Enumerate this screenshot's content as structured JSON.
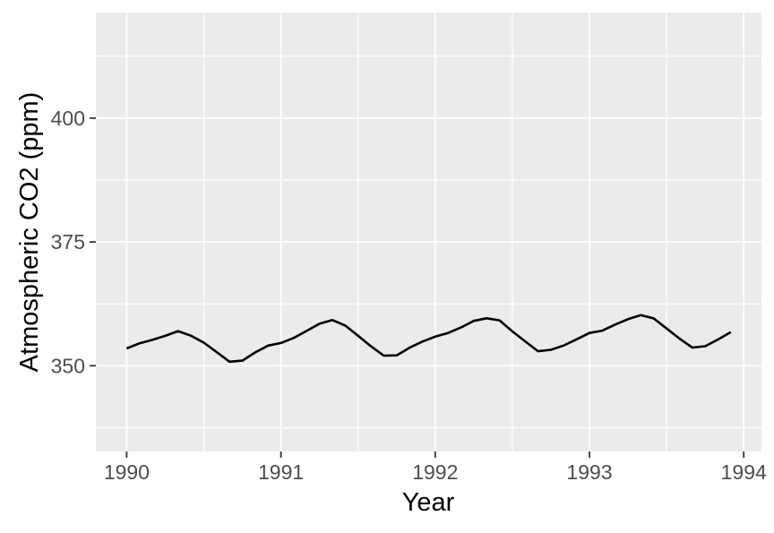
{
  "figure": {
    "kind": "ggplot-style time series plot"
  },
  "chart_data": {
    "type": "line",
    "title": "",
    "xlabel": "Year",
    "ylabel": "Atmospheric CO2 (ppm)",
    "x_start": 1990,
    "x_step_years": 0.0833333,
    "x_unit": "decimal year, monthly observations",
    "series": [
      {
        "name": "co2",
        "values": [
          353.5,
          354.55,
          355.23,
          356.04,
          357.0,
          356.07,
          354.67,
          352.76,
          350.82,
          351.04,
          352.69,
          354.07,
          354.59,
          355.63,
          357.03,
          358.48,
          359.22,
          358.12,
          356.06,
          353.92,
          352.05,
          352.11,
          353.64,
          354.89,
          355.88,
          356.63,
          357.72,
          359.07,
          359.58,
          359.17,
          356.94,
          354.92,
          352.94,
          353.23,
          354.09,
          355.33,
          356.63,
          357.1,
          358.32,
          359.41,
          360.23,
          359.55,
          357.53,
          355.48,
          353.67,
          353.95,
          355.3,
          356.78
        ]
      }
    ],
    "x_ticks": [
      1990,
      1991,
      1992,
      1993,
      1994
    ],
    "x_tick_labels": [
      "1990",
      "1991",
      "1992",
      "1993",
      "1994"
    ],
    "y_ticks": [
      350,
      375,
      400
    ],
    "y_tick_labels": [
      "350",
      "375",
      "400"
    ],
    "x_minor_ticks": [
      1990.5,
      1991.5,
      1992.5,
      1993.5
    ],
    "y_minor_ticks": [
      337.5,
      362.5,
      387.5,
      412.5
    ],
    "xlim": [
      1989.8,
      1994.115
    ],
    "ylim": [
      332.7,
      421.3
    ],
    "grid": true,
    "legend": false,
    "colors": {
      "background": "#FFFFFF",
      "panel_background": "#EBEBEB",
      "gridline": "#FFFFFF",
      "line": "#000000",
      "tick_mark": "#333333",
      "tick_label": "#4D4D4D",
      "axis_title": "#000000"
    }
  }
}
